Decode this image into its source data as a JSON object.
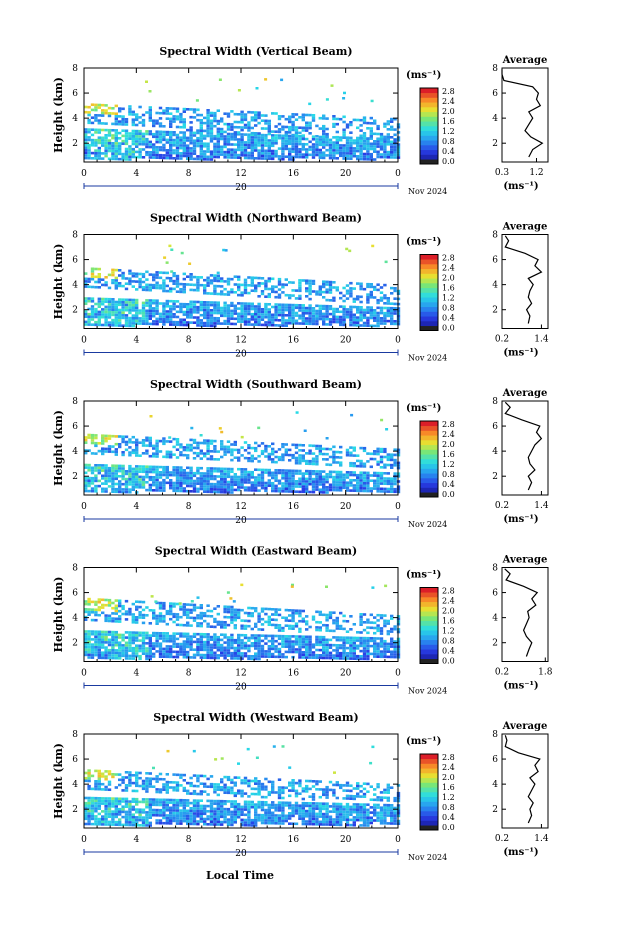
{
  "figure": {
    "x_axis_title": "Local Time",
    "day_label": "20",
    "date_label": "Nov 2024",
    "unit_label": "(ms⁻¹)",
    "y_label": "Height (km)",
    "avg_title": "Average",
    "avg_xlabel": "(ms⁻¹)"
  },
  "chart_data": [
    {
      "type": "heatmap",
      "title": "Spectral Width (Vertical Beam)",
      "xlabel": "",
      "ylabel": "Height (km)",
      "x_ticks": [
        "0",
        "4",
        "8",
        "12",
        "16",
        "20",
        "0"
      ],
      "y_ticks": [
        "2",
        "4",
        "6",
        "8"
      ],
      "ylim": [
        0.5,
        8
      ],
      "xlim": [
        0,
        24
      ],
      "colorbar": {
        "unit": "(ms⁻¹)",
        "ticks": [
          "0.0",
          "0.4",
          "0.8",
          "1.2",
          "1.6",
          "2.0",
          "2.4",
          "2.8"
        ]
      },
      "layers": [
        {
          "name": "low",
          "x": [
            0,
            24
          ],
          "bottom_km": [
            0.8,
            0.8
          ],
          "top_km": [
            3.2,
            2.4
          ],
          "mean_width": 0.9
        },
        {
          "name": "mid",
          "x": [
            0,
            24
          ],
          "bottom_km": [
            3.6,
            2.2
          ],
          "top_km": [
            5.2,
            4.0
          ],
          "mean_width": 1.0
        }
      ],
      "average_profile": {
        "title": "Average",
        "xlabel": "(ms⁻¹)",
        "x_ticks": [
          "0.3",
          "1.2"
        ],
        "xlim": [
          0.3,
          1.5
        ],
        "y_ticks": [
          "2",
          "4",
          "6",
          "8"
        ],
        "ylim": [
          0.5,
          8
        ],
        "height_km": [
          0.9,
          1.5,
          2.0,
          2.5,
          3.0,
          3.5,
          4.0,
          4.5,
          5.0,
          5.5,
          6.0,
          6.5,
          7.0,
          7.5,
          7.9
        ],
        "width": [
          1.0,
          1.1,
          1.35,
          1.05,
          0.9,
          1.0,
          1.1,
          1.0,
          1.3,
          1.2,
          1.25,
          1.1,
          0.35,
          0.3,
          0.3
        ]
      }
    },
    {
      "type": "heatmap",
      "title": "Spectral Width (Northward Beam)",
      "xlabel": "",
      "ylabel": "Height (km)",
      "x_ticks": [
        "0",
        "4",
        "8",
        "12",
        "16",
        "20",
        "0"
      ],
      "y_ticks": [
        "2",
        "4",
        "6",
        "8"
      ],
      "ylim": [
        0.5,
        8
      ],
      "xlim": [
        0,
        24
      ],
      "colorbar": {
        "unit": "(ms⁻¹)",
        "ticks": [
          "0.0",
          "0.4",
          "0.8",
          "1.2",
          "1.6",
          "2.0",
          "2.4",
          "2.8"
        ]
      },
      "layers": [
        {
          "name": "low",
          "x": [
            0,
            24
          ],
          "bottom_km": [
            0.8,
            0.8
          ],
          "top_km": [
            3.0,
            2.2
          ],
          "mean_width": 0.9
        },
        {
          "name": "mid",
          "x": [
            0,
            24
          ],
          "bottom_km": [
            3.8,
            2.4
          ],
          "top_km": [
            5.4,
            4.0
          ],
          "mean_width": 1.0
        }
      ],
      "average_profile": {
        "title": "Average",
        "xlabel": "(ms⁻¹)",
        "x_ticks": [
          "0.2",
          "1.4"
        ],
        "xlim": [
          0.2,
          1.6
        ],
        "y_ticks": [
          "2",
          "4",
          "6",
          "8"
        ],
        "ylim": [
          0.5,
          8
        ],
        "height_km": [
          0.9,
          1.5,
          2.0,
          2.5,
          3.0,
          3.5,
          4.0,
          4.5,
          5.0,
          5.5,
          6.0,
          6.5,
          7.0,
          7.5,
          7.9
        ],
        "width": [
          1.0,
          1.05,
          0.95,
          1.1,
          1.0,
          1.05,
          1.15,
          1.0,
          1.4,
          1.2,
          1.3,
          0.9,
          0.3,
          0.4,
          0.3
        ]
      }
    },
    {
      "type": "heatmap",
      "title": "Spectral Width (Southward Beam)",
      "xlabel": "",
      "ylabel": "Height (km)",
      "x_ticks": [
        "0",
        "4",
        "8",
        "12",
        "16",
        "20",
        "0"
      ],
      "y_ticks": [
        "2",
        "4",
        "6",
        "8"
      ],
      "ylim": [
        0.5,
        8
      ],
      "xlim": [
        0,
        24
      ],
      "colorbar": {
        "unit": "(ms⁻¹)",
        "ticks": [
          "0.0",
          "0.4",
          "0.8",
          "1.2",
          "1.6",
          "2.0",
          "2.4",
          "2.8"
        ]
      },
      "layers": [
        {
          "name": "low",
          "x": [
            0,
            24
          ],
          "bottom_km": [
            0.8,
            0.8
          ],
          "top_km": [
            3.0,
            2.3
          ],
          "mean_width": 0.9
        },
        {
          "name": "mid",
          "x": [
            0,
            24
          ],
          "bottom_km": [
            3.8,
            2.6
          ],
          "top_km": [
            5.4,
            4.2
          ],
          "mean_width": 1.0
        }
      ],
      "average_profile": {
        "title": "Average",
        "xlabel": "(ms⁻¹)",
        "x_ticks": [
          "0.2",
          "1.4"
        ],
        "xlim": [
          0.2,
          1.6
        ],
        "y_ticks": [
          "2",
          "4",
          "6",
          "8"
        ],
        "ylim": [
          0.5,
          8
        ],
        "height_km": [
          0.9,
          1.5,
          2.0,
          2.5,
          3.0,
          3.5,
          4.0,
          4.5,
          5.0,
          5.5,
          6.0,
          6.5,
          7.0,
          7.5,
          7.9
        ],
        "width": [
          1.0,
          1.1,
          1.0,
          1.2,
          1.05,
          1.0,
          1.1,
          1.2,
          1.4,
          1.25,
          1.35,
          0.8,
          0.3,
          0.45,
          0.3
        ]
      }
    },
    {
      "type": "heatmap",
      "title": "Spectral Width (Eastward Beam)",
      "xlabel": "",
      "ylabel": "Height (km)",
      "x_ticks": [
        "0",
        "4",
        "8",
        "12",
        "16",
        "20",
        "0"
      ],
      "y_ticks": [
        "2",
        "4",
        "6",
        "8"
      ],
      "ylim": [
        0.5,
        8
      ],
      "xlim": [
        0,
        24
      ],
      "colorbar": {
        "unit": "(ms⁻¹)",
        "ticks": [
          "0.0",
          "0.4",
          "0.8",
          "1.2",
          "1.6",
          "2.0",
          "2.4",
          "2.8"
        ]
      },
      "layers": [
        {
          "name": "low",
          "x": [
            0,
            24
          ],
          "bottom_km": [
            0.8,
            0.8
          ],
          "top_km": [
            3.0,
            2.4
          ],
          "mean_width": 0.9
        },
        {
          "name": "mid",
          "x": [
            0,
            24
          ],
          "bottom_km": [
            3.8,
            2.6
          ],
          "top_km": [
            5.6,
            4.2
          ],
          "mean_width": 1.0
        }
      ],
      "average_profile": {
        "title": "Average",
        "xlabel": "(ms⁻¹)",
        "x_ticks": [
          "0.2",
          "1.8"
        ],
        "xlim": [
          0.2,
          1.9
        ],
        "y_ticks": [
          "2",
          "4",
          "6",
          "8"
        ],
        "ylim": [
          0.5,
          8
        ],
        "height_km": [
          0.9,
          1.5,
          2.0,
          2.5,
          3.0,
          3.5,
          4.0,
          4.5,
          5.0,
          5.5,
          6.0,
          6.5,
          7.0,
          7.5,
          7.9
        ],
        "width": [
          1.1,
          1.2,
          1.3,
          1.1,
          1.0,
          1.1,
          1.2,
          1.15,
          1.45,
          1.3,
          1.5,
          1.0,
          0.35,
          0.5,
          0.3
        ]
      }
    },
    {
      "type": "heatmap",
      "title": "Spectral Width (Westward Beam)",
      "xlabel": "Local Time",
      "ylabel": "Height (km)",
      "x_ticks": [
        "0",
        "4",
        "8",
        "12",
        "16",
        "20",
        "0"
      ],
      "y_ticks": [
        "2",
        "4",
        "6",
        "8"
      ],
      "ylim": [
        0.5,
        8
      ],
      "xlim": [
        0,
        24
      ],
      "colorbar": {
        "unit": "(ms⁻¹)",
        "ticks": [
          "0.0",
          "0.4",
          "0.8",
          "1.2",
          "1.6",
          "2.0",
          "2.4",
          "2.8"
        ]
      },
      "layers": [
        {
          "name": "low",
          "x": [
            0,
            24
          ],
          "bottom_km": [
            0.8,
            0.8
          ],
          "top_km": [
            3.0,
            2.4
          ],
          "mean_width": 0.9
        },
        {
          "name": "mid",
          "x": [
            0,
            24
          ],
          "bottom_km": [
            3.6,
            2.6
          ],
          "top_km": [
            5.2,
            4.0
          ],
          "mean_width": 1.0
        }
      ],
      "average_profile": {
        "title": "Average",
        "xlabel": "(ms⁻¹)",
        "x_ticks": [
          "0.2",
          "1.4"
        ],
        "xlim": [
          0.2,
          1.6
        ],
        "y_ticks": [
          "2",
          "4",
          "6",
          "8"
        ],
        "ylim": [
          0.5,
          8
        ],
        "height_km": [
          0.9,
          1.5,
          2.0,
          2.5,
          3.0,
          3.5,
          4.0,
          4.5,
          5.0,
          5.5,
          6.0,
          6.5,
          7.0,
          7.5,
          7.9
        ],
        "width": [
          1.0,
          1.1,
          1.05,
          1.15,
          1.0,
          1.1,
          1.2,
          1.05,
          1.3,
          1.2,
          1.35,
          0.7,
          0.3,
          0.35,
          0.3
        ]
      }
    }
  ]
}
